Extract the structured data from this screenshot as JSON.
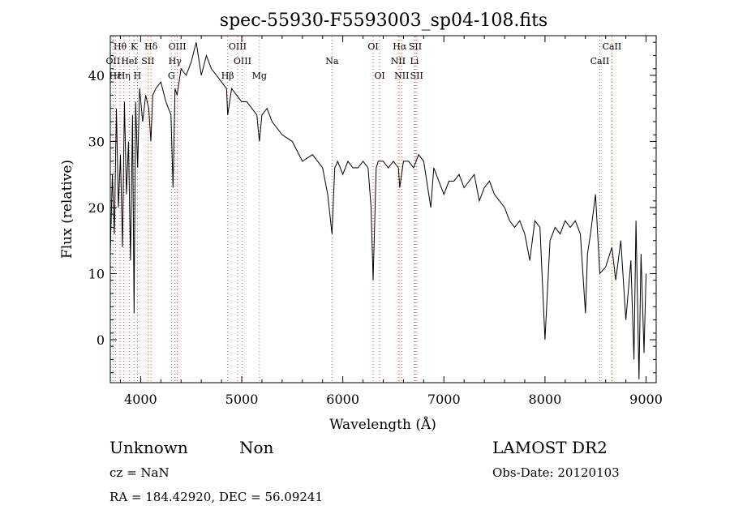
{
  "chart_data": {
    "type": "line",
    "title": "spec-55930-F5593003_sp04-108.fits",
    "xlabel": "Wavelength (Å)",
    "ylabel": "Flux (relative)",
    "xlim": [
      3700,
      9100
    ],
    "ylim": [
      -6.5,
      46
    ],
    "xticks": [
      4000,
      5000,
      6000,
      7000,
      8000,
      9000
    ],
    "yticks": [
      0,
      10,
      20,
      30,
      40
    ],
    "grid": false,
    "series": [
      {
        "x": [
          3700,
          3720,
          3740,
          3760,
          3780,
          3800,
          3820,
          3840,
          3860,
          3880,
          3900,
          3920,
          3935,
          3950,
          3970,
          3990,
          4020,
          4050,
          4080,
          4101,
          4120,
          4150,
          4200,
          4250,
          4300,
          4320,
          4340,
          4360,
          4400,
          4450,
          4500,
          4550,
          4600,
          4650,
          4700,
          4750,
          4800,
          4850,
          4861,
          4900,
          4950,
          5000,
          5050,
          5100,
          5150,
          5175,
          5200,
          5250,
          5300,
          5400,
          5500,
          5600,
          5700,
          5800,
          5850,
          5893,
          5920,
          5950,
          6000,
          6050,
          6100,
          6150,
          6200,
          6250,
          6280,
          6300,
          6330,
          6350,
          6400,
          6450,
          6500,
          6550,
          6563,
          6600,
          6650,
          6700,
          6750,
          6800,
          6850,
          6870,
          6900,
          6950,
          7000,
          7050,
          7100,
          7150,
          7200,
          7250,
          7300,
          7350,
          7400,
          7450,
          7500,
          7550,
          7600,
          7650,
          7700,
          7750,
          7800,
          7850,
          7900,
          7950,
          8000,
          8050,
          8100,
          8150,
          8200,
          8250,
          8300,
          8350,
          8400,
          8420,
          8450,
          8500,
          8542,
          8600,
          8662,
          8700,
          8750,
          8800,
          8850,
          8880,
          8900,
          8930,
          8950,
          8980,
          9000
        ],
        "values": [
          13,
          25,
          16,
          35,
          20,
          28,
          14,
          36,
          22,
          30,
          12,
          34,
          4,
          36,
          26,
          38,
          33,
          37,
          35,
          30,
          37,
          38,
          39,
          36,
          34,
          23,
          38,
          37,
          41,
          40,
          42,
          45,
          40,
          43,
          41,
          40,
          39,
          38,
          34,
          38,
          37,
          36,
          36,
          35,
          34,
          30,
          34,
          35,
          33,
          31,
          30,
          27,
          28,
          26,
          22,
          16,
          26,
          27,
          25,
          27,
          26,
          26,
          27,
          26,
          20,
          9,
          26,
          27,
          27,
          26,
          27,
          26,
          23,
          27,
          27,
          26,
          28,
          27,
          22,
          20,
          26,
          24,
          22,
          24,
          24,
          25,
          23,
          24,
          25,
          21,
          23,
          24,
          22,
          21,
          20,
          18,
          17,
          18,
          16,
          12,
          18,
          17,
          0,
          15,
          17,
          16,
          18,
          17,
          18,
          16,
          4,
          13,
          16,
          22,
          10,
          11,
          14,
          9,
          15,
          3,
          12,
          -3,
          18,
          -6,
          13,
          -2,
          10
        ]
      }
    ],
    "lines_top": [
      {
        "label": "Hθ",
        "wave": 3797
      },
      {
        "label": "K",
        "wave": 3934
      },
      {
        "label": "Hδ",
        "wave": 4102
      },
      {
        "label": "OIII",
        "wave": 4363
      },
      {
        "label": "OIII",
        "wave": 4959
      },
      {
        "label": "OI",
        "wave": 6300
      },
      {
        "label": "Hα",
        "wave": 6563
      },
      {
        "label": "SII",
        "wave": 6717
      },
      {
        "label": "CaII",
        "wave": 8662
      }
    ],
    "lines_mid": [
      {
        "label": "OII",
        "wave": 3727
      },
      {
        "label": "HeI",
        "wave": 3889
      },
      {
        "label": "SII",
        "wave": 4072
      },
      {
        "label": "Hγ",
        "wave": 4340
      },
      {
        "label": "OIII",
        "wave": 5007
      },
      {
        "label": "Na",
        "wave": 5893
      },
      {
        "label": "NII",
        "wave": 6548
      },
      {
        "label": "Li",
        "wave": 6708
      },
      {
        "label": "CaII",
        "wave": 8542
      }
    ],
    "lines_bot": [
      {
        "label": "Hε",
        "wave": 3750
      },
      {
        "label": "Hη",
        "wave": 3835
      },
      {
        "label": "H",
        "wave": 3968
      },
      {
        "label": "G",
        "wave": 4304
      },
      {
        "label": "Hβ",
        "wave": 4861
      },
      {
        "label": "Mg",
        "wave": 5175
      },
      {
        "label": "OI",
        "wave": 6364
      },
      {
        "label": "NII",
        "wave": 6583
      },
      {
        "label": "SII",
        "wave": 6731
      }
    ]
  },
  "info": {
    "class": "Unknown",
    "subclass": "Non",
    "cz": "cz = NaN",
    "coords": "RA = 184.42920, DEC =  56.09241",
    "survey": "LAMOST DR2",
    "obsdate": "Obs-Date: 20120103"
  }
}
